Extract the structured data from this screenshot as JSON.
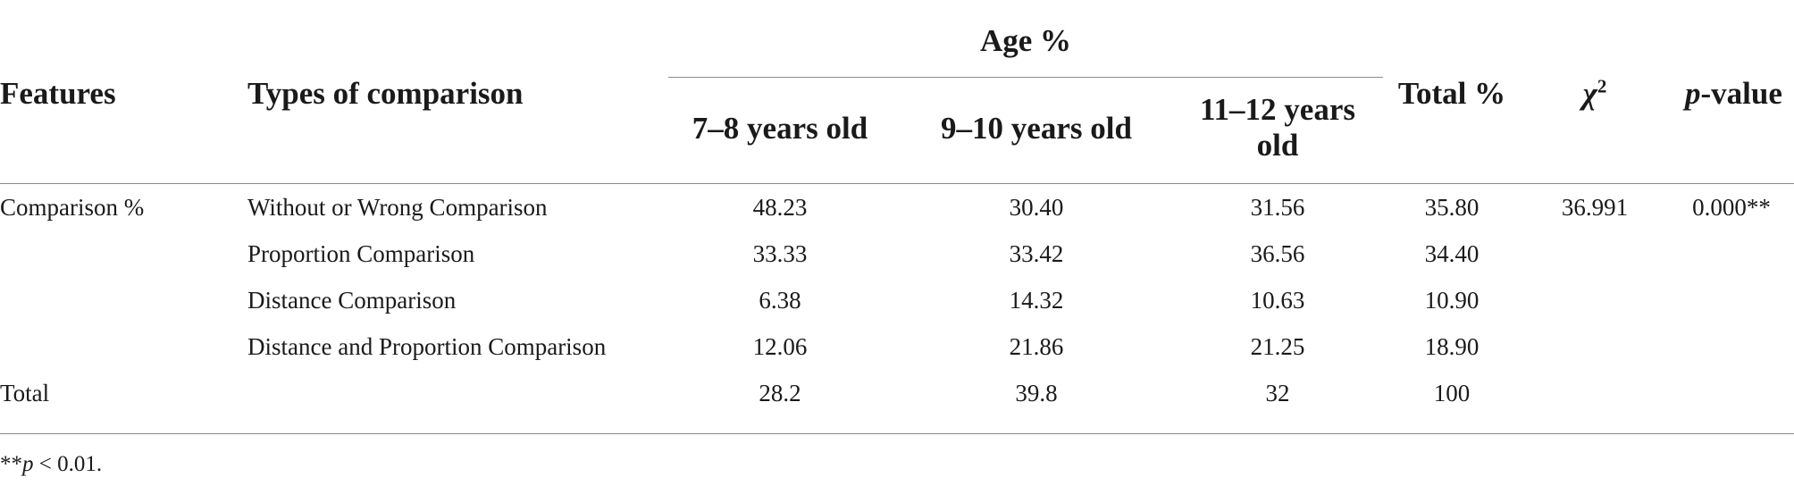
{
  "header": {
    "features": "Features",
    "types": "Types of comparison",
    "age_group": "Age %",
    "age_col_1": "7–8 years old",
    "age_col_2": "9–10 years old",
    "age_col_3_line1": "11–12 years",
    "age_col_3_line2": "old",
    "total": "Total %",
    "chi_symbol": "χ",
    "chi_sup": "2",
    "p_italic": "p",
    "p_rest": "-value"
  },
  "rows": [
    {
      "feature": "Comparison %",
      "type": "Without or Wrong Comparison",
      "a1": "48.23",
      "a2": "30.40",
      "a3": "31.56",
      "total": "35.80",
      "chi": "36.991",
      "p": "0.000**"
    },
    {
      "feature": "",
      "type": "Proportion Comparison",
      "a1": "33.33",
      "a2": "33.42",
      "a3": "36.56",
      "total": "34.40",
      "chi": "",
      "p": ""
    },
    {
      "feature": "",
      "type": "Distance Comparison",
      "a1": "6.38",
      "a2": "14.32",
      "a3": "10.63",
      "total": "10.90",
      "chi": "",
      "p": ""
    },
    {
      "feature": "",
      "type": "Distance and Proportion Comparison",
      "a1": "12.06",
      "a2": "21.86",
      "a3": "21.25",
      "total": "18.90",
      "chi": "",
      "p": ""
    },
    {
      "feature": "Total",
      "type": "",
      "a1": "28.2",
      "a2": "39.8",
      "a3": "32",
      "total": "100",
      "chi": "",
      "p": ""
    }
  ],
  "footnote": {
    "stars": "**",
    "p": "p",
    "rest": " < 0.01."
  }
}
